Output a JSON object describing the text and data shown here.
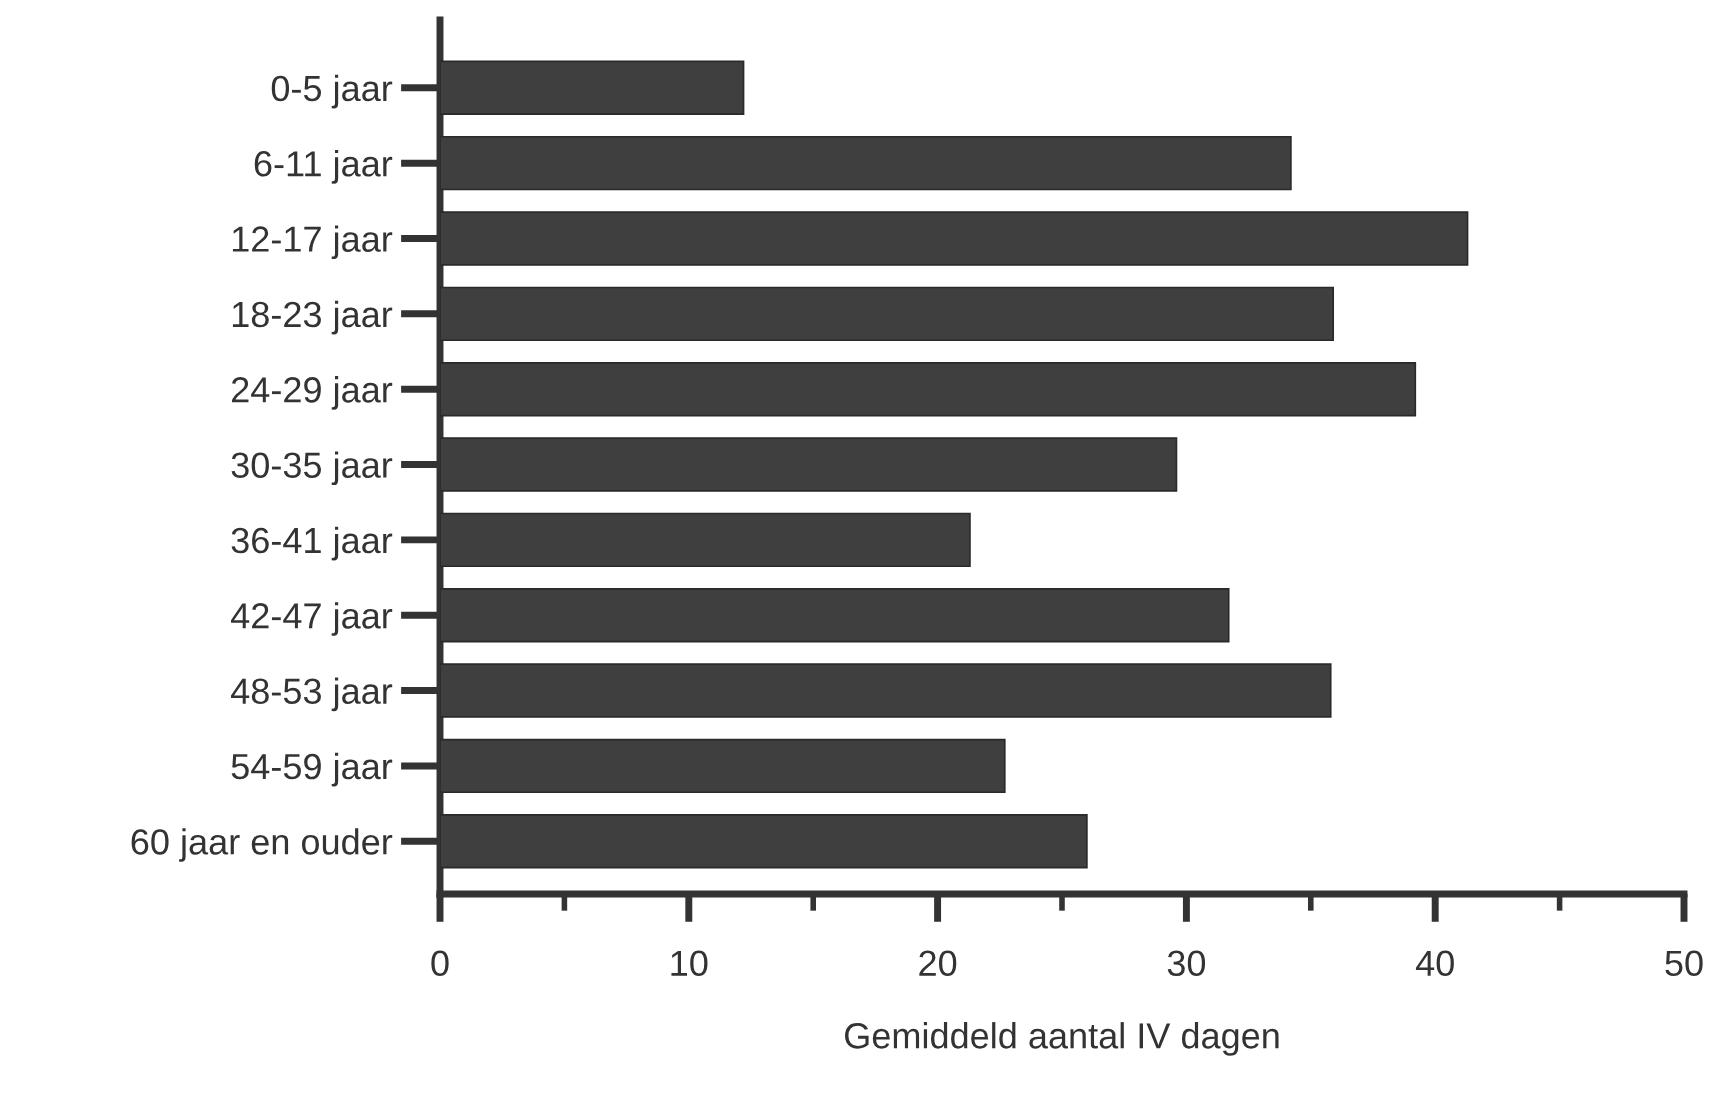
{
  "chart_data": {
    "type": "bar",
    "orientation": "horizontal",
    "xlabel": "Gemiddeld aantal IV dagen",
    "categories": [
      "0-5 jaar",
      "6-11 jaar",
      "12-17 jaar",
      "18-23 jaar",
      "24-29 jaar",
      "30-35 jaar",
      "36-41 jaar",
      "42-47 jaar",
      "48-53 jaar",
      "54-59 jaar",
      "60 jaar en ouder"
    ],
    "values": [
      12.2,
      34.2,
      41.3,
      35.9,
      39.2,
      29.6,
      21.3,
      31.7,
      35.8,
      22.7,
      26.0
    ],
    "color": "#3f3f3f",
    "xlim": [
      0,
      50
    ],
    "xticks": [
      0,
      {
        "value": 5,
        "label": null
      },
      10,
      {
        "value": 15,
        "label": null
      },
      20,
      {
        "value": 25,
        "label": null
      },
      30,
      {
        "value": 35,
        "label": null
      },
      40,
      {
        "value": 45,
        "label": null
      },
      50
    ],
    "grid": false
  }
}
